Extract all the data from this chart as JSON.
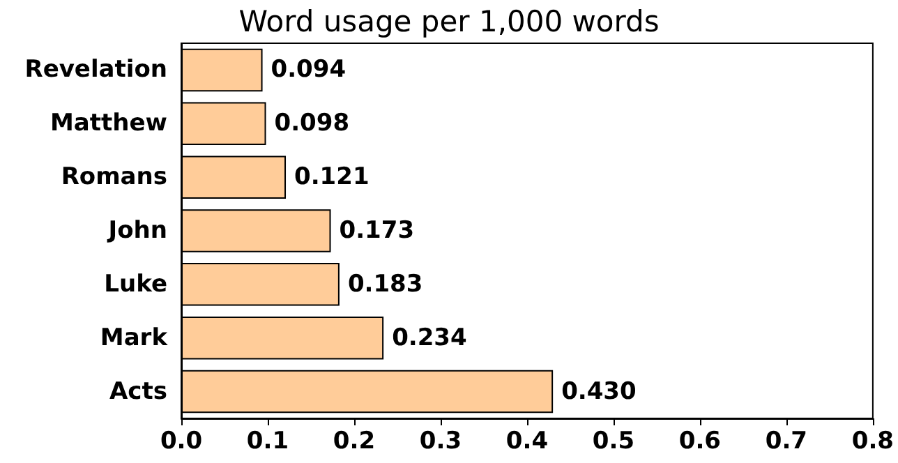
{
  "chart_data": {
    "type": "bar",
    "orientation": "horizontal",
    "title": "Word usage per 1,000 words",
    "categories": [
      "Revelation",
      "Matthew",
      "Romans",
      "John",
      "Luke",
      "Mark",
      "Acts"
    ],
    "values": [
      0.094,
      0.098,
      0.121,
      0.173,
      0.183,
      0.234,
      0.43
    ],
    "value_labels": [
      "0.094",
      "0.098",
      "0.121",
      "0.173",
      "0.183",
      "0.234",
      "0.430"
    ],
    "color": "#ffcc99",
    "xlim": [
      0,
      0.8
    ],
    "xticks": [
      {
        "value": 0,
        "label": "0.0"
      },
      0.1,
      0.2,
      0.3,
      0.4,
      0.5,
      0.6,
      0.7,
      {
        "value": 0.8,
        "label": "0.8"
      }
    ],
    "grid": false
  }
}
